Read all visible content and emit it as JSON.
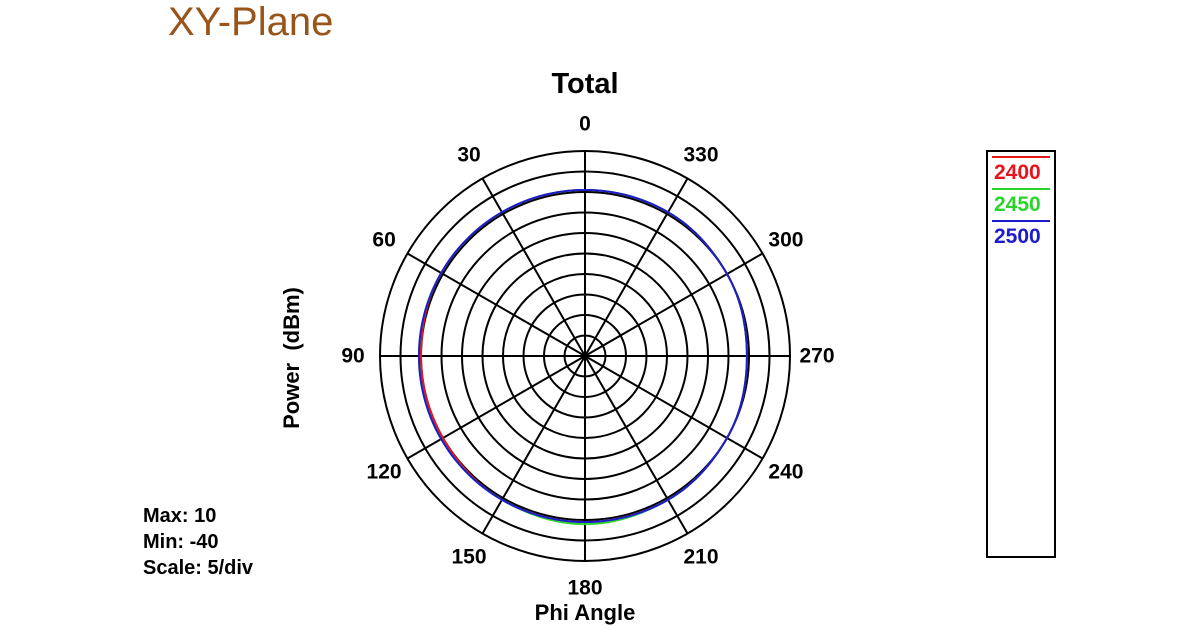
{
  "page_heading": "XY-Plane",
  "chart_data": {
    "type": "polar",
    "title": "Total",
    "xlabel": "Phi Angle",
    "ylabel": "Power  (dBm)",
    "angle_direction": "counterclockwise",
    "zero_at": "top",
    "angle_ticks": [
      "0",
      "30",
      "60",
      "90",
      "120",
      "150",
      "180",
      "210",
      "240",
      "270",
      "300",
      "330"
    ],
    "angles_deg": [
      0,
      30,
      60,
      90,
      120,
      150,
      180,
      210,
      240,
      270,
      300,
      330
    ],
    "r_range": [
      -40,
      10
    ],
    "r_scale": 5,
    "stats": {
      "max": "Max: 10",
      "min": "Min: -40",
      "scale": "Scale: 5/div"
    },
    "legend_placement": "right",
    "series": [
      {
        "name": "2400",
        "color": "#e8141b",
        "values": [
          0.5,
          0.5,
          0.5,
          0.0,
          0.0,
          0.5,
          0.5,
          0.5,
          0.0,
          -0.5,
          0.0,
          0.5
        ]
      },
      {
        "name": "2450",
        "color": "#2bd52b",
        "values": [
          0.5,
          0.5,
          0.5,
          0.5,
          0.5,
          0.5,
          1.0,
          0.5,
          0.0,
          -0.5,
          0.0,
          0.5
        ]
      },
      {
        "name": "2500",
        "color": "#1c1ccc",
        "values": [
          0.5,
          0.5,
          0.5,
          0.5,
          0.5,
          0.5,
          0.5,
          0.5,
          0.0,
          -0.5,
          0.0,
          0.5
        ]
      }
    ]
  }
}
